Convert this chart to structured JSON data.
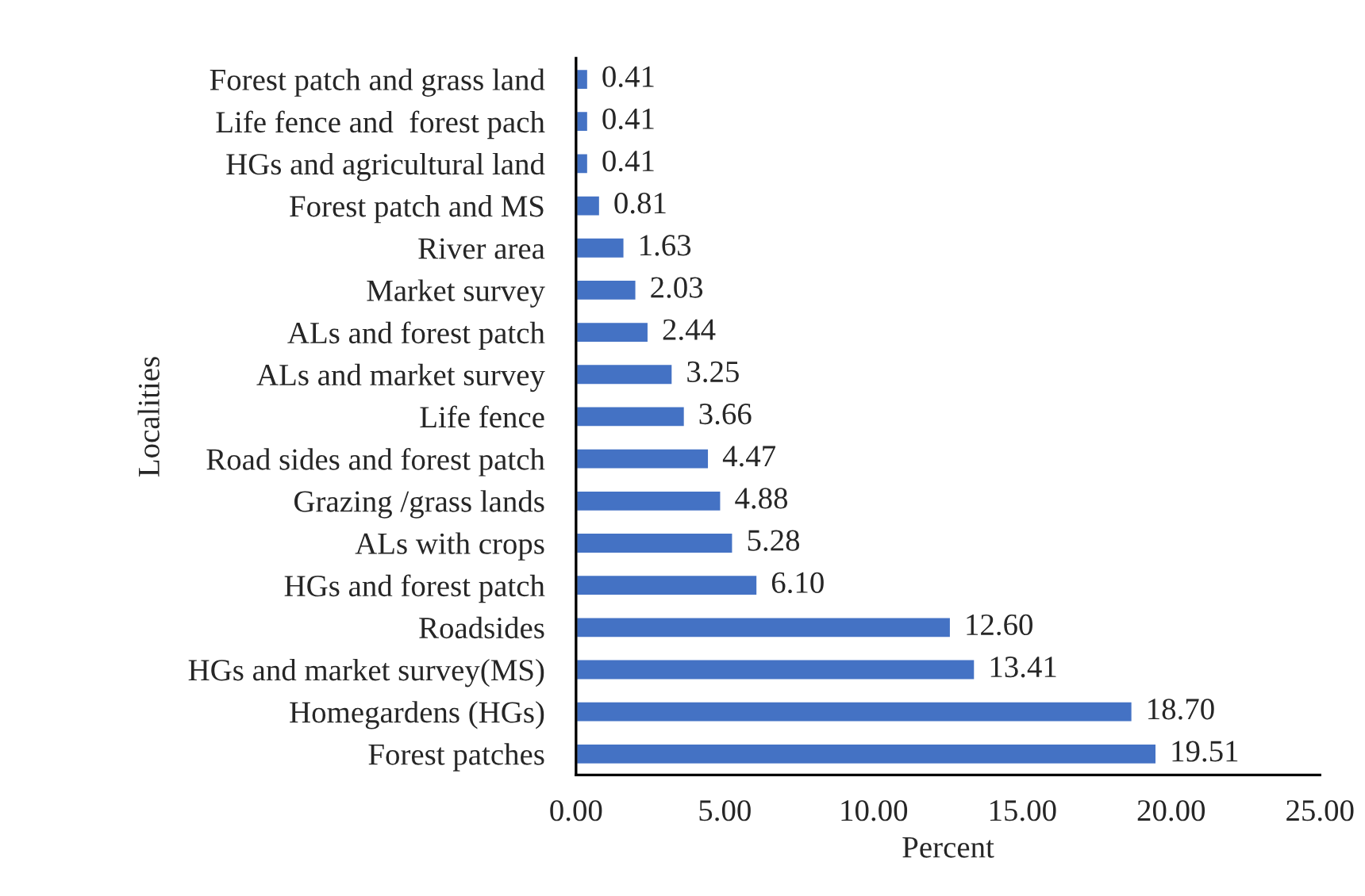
{
  "chart_data": {
    "type": "bar",
    "orientation": "horizontal",
    "xlabel": "Percent",
    "ylabel": "Localities",
    "categories": [
      "Forest patch and grass land",
      "Life fence and  forest pach",
      "HGs and agricultural land",
      "Forest patch and MS",
      "River area",
      "Market survey",
      "ALs and forest patch",
      "ALs and market survey",
      "Life fence",
      "Road sides and forest patch",
      "Grazing /grass lands",
      "ALs with crops",
      "HGs and forest patch",
      "Roadsides",
      "HGs and market survey(MS)",
      "Homegardens (HGs)",
      "Forest patches"
    ],
    "values": [
      0.41,
      0.41,
      0.41,
      0.81,
      1.63,
      2.03,
      2.44,
      3.25,
      3.66,
      4.47,
      4.88,
      5.28,
      6.1,
      12.6,
      13.41,
      18.7,
      19.51
    ],
    "value_labels": [
      "0.41",
      "0.41",
      "0.41",
      "0.81",
      "1.63",
      "2.03",
      "2.44",
      "3.25",
      "3.66",
      "4.47",
      "4.88",
      "5.28",
      "6.10",
      "12.60",
      "13.41",
      "18.70",
      "19.51"
    ],
    "color": "#4472c4",
    "xlim": [
      0,
      25
    ],
    "xticks": [
      {
        "value": 0,
        "label": "0.00"
      },
      {
        "value": 5,
        "label": "5.00"
      },
      {
        "value": 10,
        "label": "10.00"
      },
      {
        "value": 15,
        "label": "15.00"
      },
      {
        "value": 20,
        "label": "20.00"
      },
      {
        "value": 25,
        "label": "25.00"
      }
    ],
    "grid": false,
    "legend": false
  }
}
